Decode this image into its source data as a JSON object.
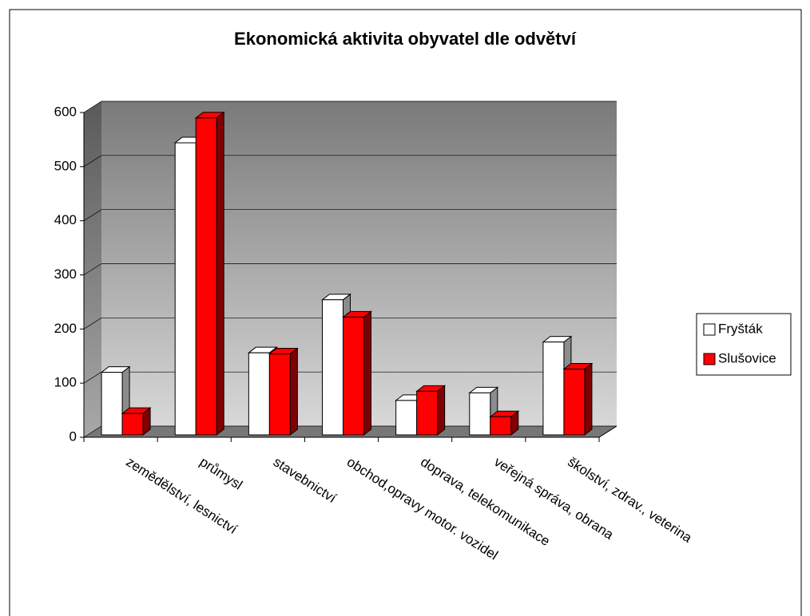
{
  "chart_data": {
    "type": "bar3d",
    "title": "Ekonomická aktivita obyvatel dle odvětví",
    "categories": [
      "zemědělství, lesnictví",
      "průmysl",
      "stavebnictví",
      "obchod,opravy motor. vozidel",
      "doprava, telekomunikace",
      "veřejná správa, obrana",
      "školství, zdrav., veterina"
    ],
    "series": [
      {
        "name": "Fryšták",
        "color": "#ffffff",
        "values": [
          120,
          544,
          156,
          254,
          68,
          82,
          176
        ]
      },
      {
        "name": "Slušovice",
        "color": "#ff0000",
        "values": [
          44,
          590,
          154,
          222,
          85,
          38,
          126
        ]
      }
    ],
    "ylim": [
      0,
      600
    ],
    "yticks": [
      0,
      100,
      200,
      300,
      400,
      500,
      600
    ],
    "grid": true,
    "legend": "right"
  }
}
